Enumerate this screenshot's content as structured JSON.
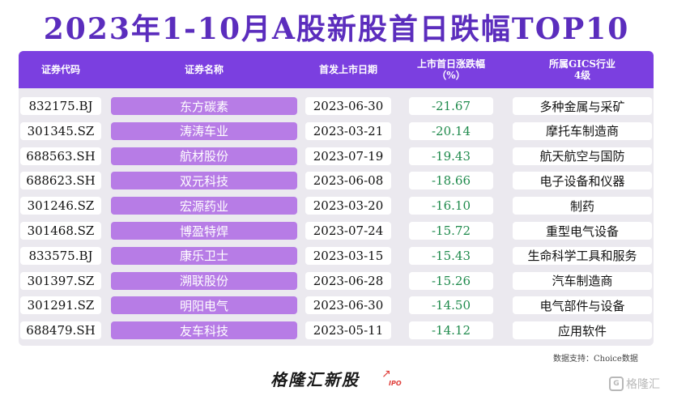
{
  "title": "2023年1-10月A股新股首日跌幅TOP10",
  "table": {
    "headers": {
      "code": "证券代码",
      "name": "证券名称",
      "date": "首发上市日期",
      "pct": "上市首日涨跌幅\n（%）",
      "industry": "所属GICS行业\n4级"
    },
    "rows": [
      {
        "code": "832175.BJ",
        "name": "东方碳素",
        "date": "2023-06-30",
        "pct": "-21.67",
        "industry": "多种金属与采矿"
      },
      {
        "code": "301345.SZ",
        "name": "涛涛车业",
        "date": "2023-03-21",
        "pct": "-20.14",
        "industry": "摩托车制造商"
      },
      {
        "code": "688563.SH",
        "name": "航材股份",
        "date": "2023-07-19",
        "pct": "-19.43",
        "industry": "航天航空与国防"
      },
      {
        "code": "688623.SH",
        "name": "双元科技",
        "date": "2023-06-08",
        "pct": "-18.66",
        "industry": "电子设备和仪器"
      },
      {
        "code": "301246.SZ",
        "name": "宏源药业",
        "date": "2023-03-20",
        "pct": "-16.10",
        "industry": "制药"
      },
      {
        "code": "301468.SZ",
        "name": "博盈特焊",
        "date": "2023-07-24",
        "pct": "-15.72",
        "industry": "重型电气设备"
      },
      {
        "code": "833575.BJ",
        "name": "康乐卫士",
        "date": "2023-03-15",
        "pct": "-15.43",
        "industry": "生命科学工具和服务"
      },
      {
        "code": "301397.SZ",
        "name": "溯联股份",
        "date": "2023-06-28",
        "pct": "-15.26",
        "industry": "汽车制造商"
      },
      {
        "code": "301291.SZ",
        "name": "明阳电气",
        "date": "2023-06-30",
        "pct": "-14.50",
        "industry": "电气部件与设备"
      },
      {
        "code": "688479.SH",
        "name": "友车科技",
        "date": "2023-05-11",
        "pct": "-14.12",
        "industry": "应用软件"
      }
    ]
  },
  "source": "数据支持：Choice数据",
  "brand": {
    "name": "格隆汇新股",
    "sub": "IPO"
  },
  "watermark": "格隆汇",
  "colors": {
    "title": "#5b2dbd",
    "header": "#7b3fe0",
    "name_cell": "#b77ce6",
    "negative": "#1f8a4c"
  }
}
